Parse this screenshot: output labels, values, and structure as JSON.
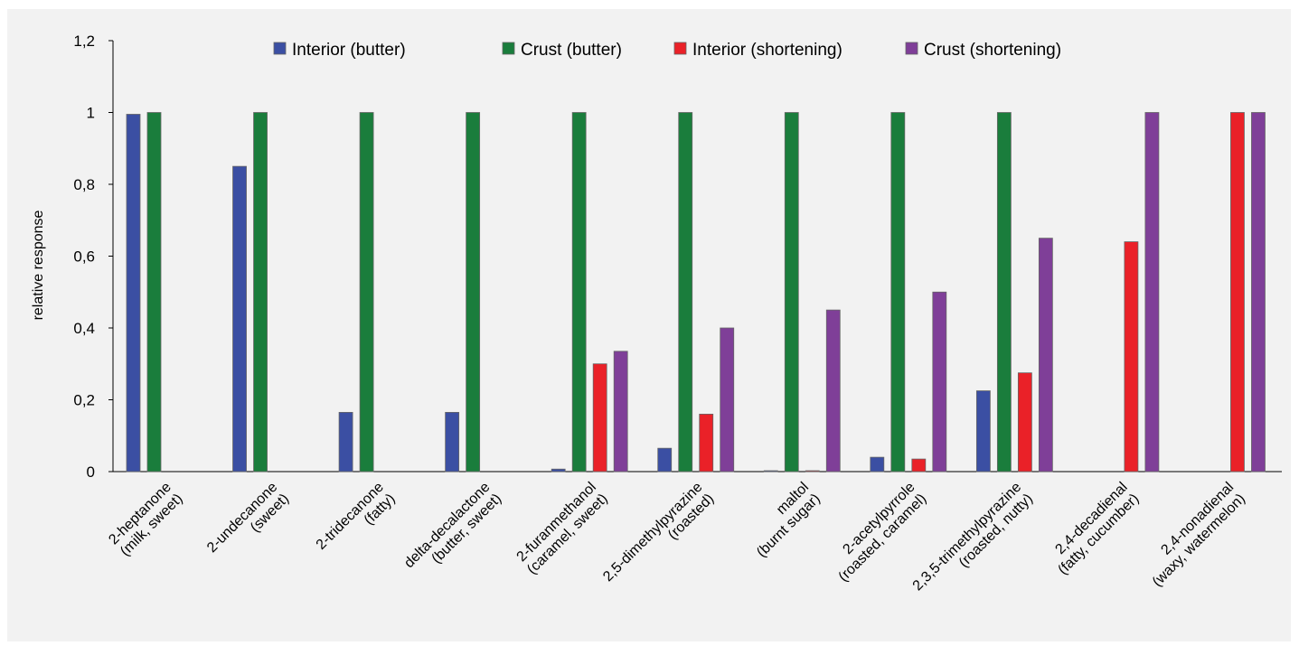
{
  "chart_data": {
    "type": "bar",
    "ylabel": "relative response",
    "ylim": [
      0,
      1.2
    ],
    "yticks": [
      0,
      0.2,
      0.4,
      0.6,
      0.8,
      1,
      1.2
    ],
    "ytick_labels": [
      "0",
      "0,2",
      "0,4",
      "0,6",
      "0,8",
      "1",
      "1,2"
    ],
    "grid": false,
    "legend_position": "top",
    "categories": [
      [
        "2-heptanone",
        "(milk, sweet)"
      ],
      [
        "2-undecanone",
        "(sweet)"
      ],
      [
        "2-tridecanone",
        "(fatty)"
      ],
      [
        "delta-decalactone",
        "(butter, sweet)"
      ],
      [
        "2-furanmethanol",
        "(caramel, sweet)"
      ],
      [
        "2,5-dimethylpyrazine",
        "(roasted)"
      ],
      [
        "maltol",
        "(burnt sugar)"
      ],
      [
        "2-acetylpyrrole",
        "(roasted, caramel)"
      ],
      [
        "2,3,5-trimethylpyrazine",
        "(roasted, nutty)"
      ],
      [
        "2,4-decadienal",
        "(fatty, cucumber)"
      ],
      [
        "2,4-nonadienal",
        "(waxy, watermelon)"
      ]
    ],
    "series": [
      {
        "name": "Interior (butter)",
        "color": "#3b4fa3",
        "values": [
          0.995,
          0.85,
          0.165,
          0.165,
          0.007,
          0.065,
          0.002,
          0.04,
          0.225,
          0,
          0
        ]
      },
      {
        "name": "Crust (butter)",
        "color": "#1a7d3c",
        "values": [
          1,
          1,
          1,
          1,
          1,
          1,
          1,
          1,
          1,
          0,
          0
        ]
      },
      {
        "name": "Interior (shortening)",
        "color": "#ea2128",
        "values": [
          0,
          0,
          0,
          0,
          0.3,
          0.16,
          0.002,
          0.035,
          0.275,
          0.64,
          1
        ]
      },
      {
        "name": "Crust (shortening)",
        "color": "#7f3f98",
        "values": [
          0,
          0,
          0,
          0,
          0.335,
          0.4,
          0.45,
          0.5,
          0.65,
          1,
          1
        ]
      }
    ]
  }
}
